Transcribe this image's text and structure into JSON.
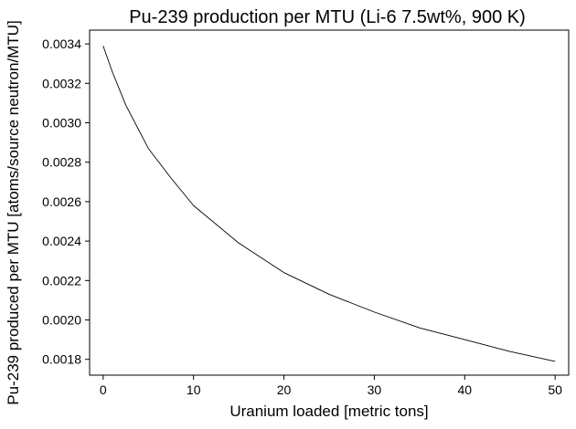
{
  "chart_data": {
    "type": "line",
    "title": "Pu-239 production per MTU (Li-6 7.5wt%, 900 K)",
    "xlabel": "Uranium loaded [metric tons]",
    "ylabel": "Pu-239 produced per MTU [atoms/source neutron/MTU]",
    "xlim": [
      -1.5,
      51.5
    ],
    "ylim": [
      0.00172,
      0.00347
    ],
    "xticks": [
      0,
      10,
      20,
      30,
      40,
      50
    ],
    "xtick_labels": [
      "0",
      "10",
      "20",
      "30",
      "40",
      "50"
    ],
    "yticks": [
      0.0018,
      0.002,
      0.0022,
      0.0024,
      0.0026,
      0.0028,
      0.003,
      0.0032,
      0.0034
    ],
    "ytick_labels": [
      "0.0018",
      "0.0020",
      "0.0022",
      "0.0024",
      "0.0026",
      "0.0028",
      "0.0030",
      "0.0032",
      "0.0034"
    ],
    "grid": false,
    "series": [
      {
        "color": "#000000",
        "x": [
          0,
          1,
          2.5,
          5,
          7.5,
          10,
          15,
          20,
          25,
          30,
          35,
          40,
          45,
          50
        ],
        "y": [
          0.00339,
          0.00326,
          0.00309,
          0.00287,
          0.00272,
          0.00258,
          0.00239,
          0.00224,
          0.00213,
          0.00204,
          0.00196,
          0.0019,
          0.00184,
          0.00179
        ]
      }
    ]
  }
}
